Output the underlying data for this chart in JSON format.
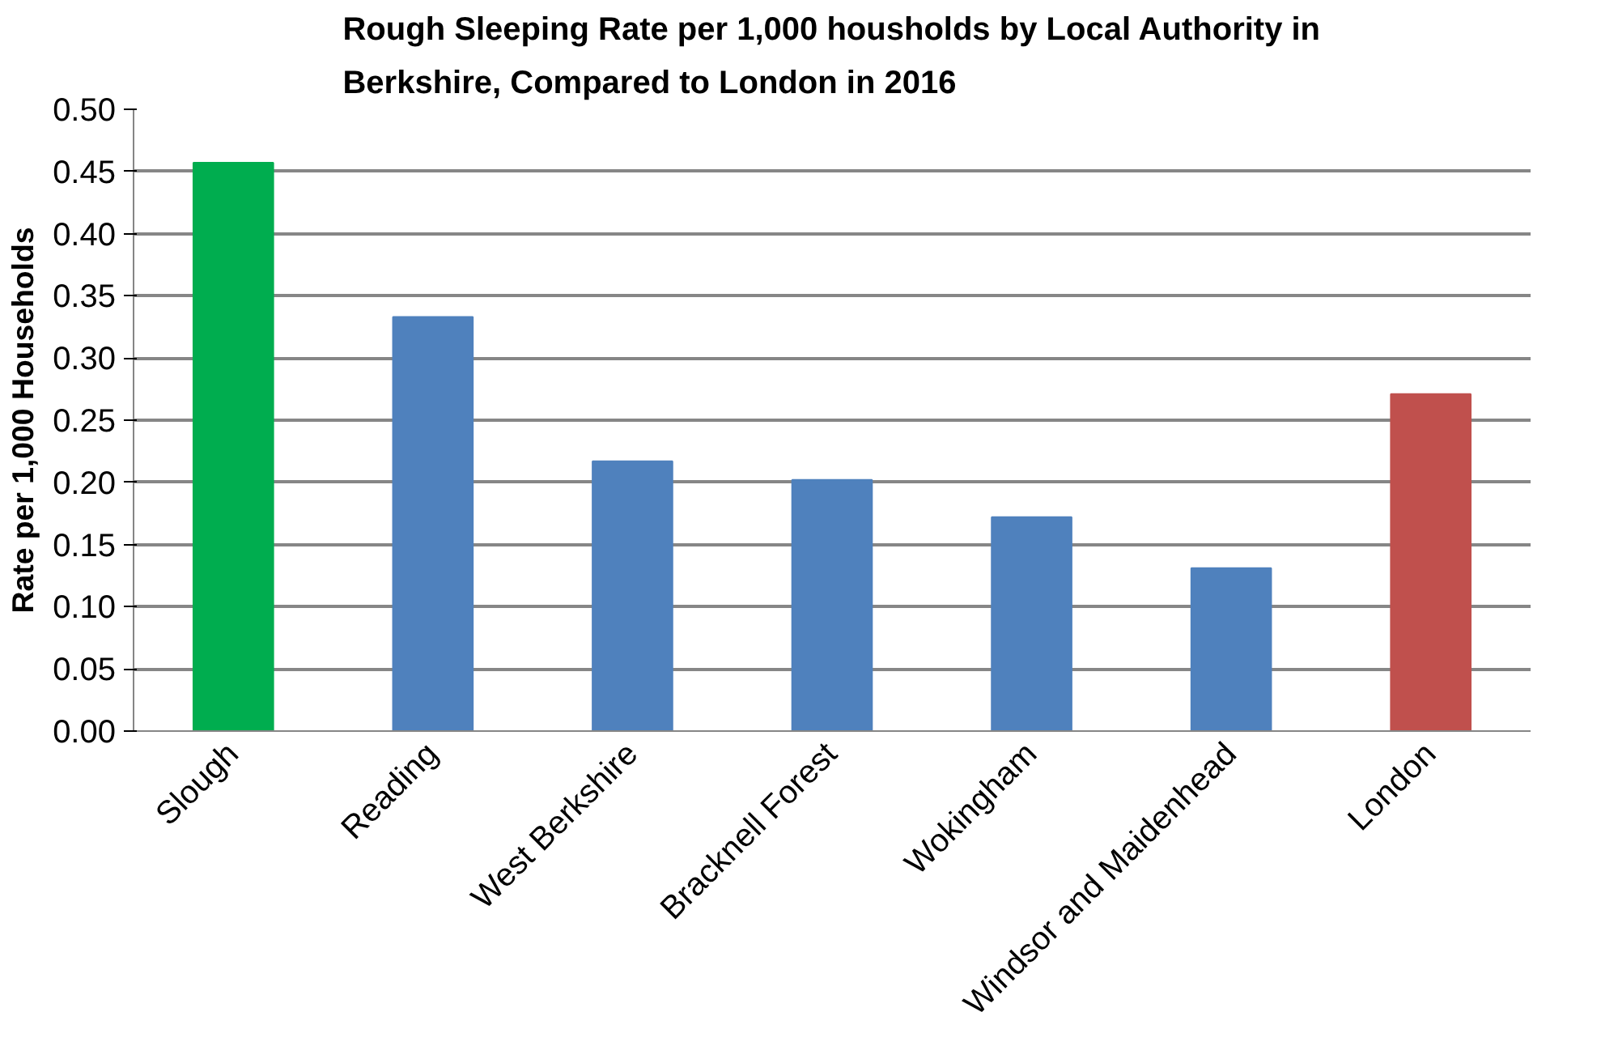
{
  "chart_data": {
    "type": "bar",
    "title": "Rough Sleeping Rate per 1,000 housholds by Local Authority in Berkshire, Compared to London in 2016",
    "ylabel": "Rate per 1,000 Households",
    "categories": [
      "Slough",
      "Reading",
      "West Berkshire",
      "Bracknell Forest",
      "Wokingham",
      "Windsor and Maidenhead",
      "London"
    ],
    "values": [
      0.457,
      0.333,
      0.217,
      0.202,
      0.172,
      0.131,
      0.271
    ],
    "colors": [
      "#00ad4f",
      "#4f81bd",
      "#4f81bd",
      "#4f81bd",
      "#4f81bd",
      "#4f81bd",
      "#c0504d"
    ],
    "ylim": [
      0,
      0.5
    ],
    "yticks": [
      {
        "value": 0,
        "label": "0.00"
      },
      {
        "value": 0.05,
        "label": "0.05"
      },
      {
        "value": 0.1,
        "label": "0.10"
      },
      {
        "value": 0.15,
        "label": "0.15"
      },
      {
        "value": 0.2,
        "label": "0.20"
      },
      {
        "value": 0.25,
        "label": "0.25"
      },
      {
        "value": 0.3,
        "label": "0.30"
      },
      {
        "value": 0.35,
        "label": "0.35"
      },
      {
        "value": 0.4,
        "label": "0.40"
      },
      {
        "value": 0.45,
        "label": "0.45"
      },
      {
        "value": 0.5,
        "label": "0.50"
      }
    ],
    "grid": "y"
  }
}
